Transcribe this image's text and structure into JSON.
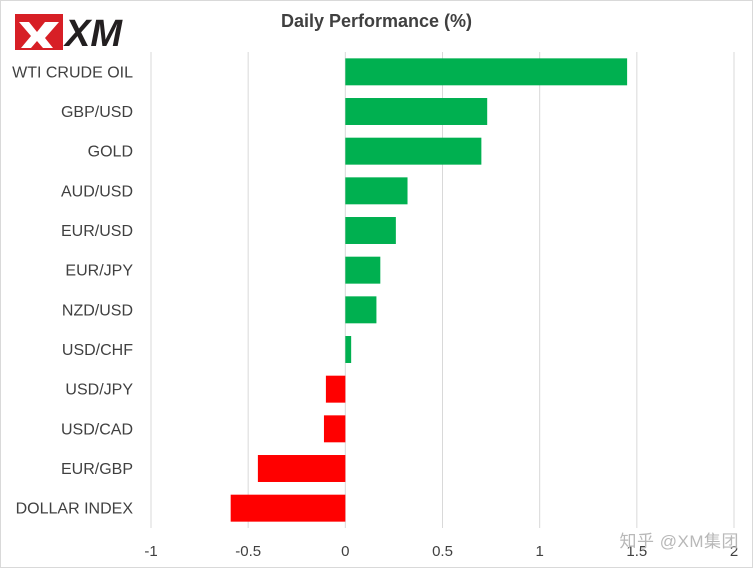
{
  "brand": {
    "logo_text": "XM",
    "logo_color": "#d71f26",
    "logo_dark": "#231f20"
  },
  "watermark": {
    "text": "知乎 @XM集团"
  },
  "chart_data": {
    "type": "bar",
    "orientation": "horizontal",
    "title": "Daily Performance (%)",
    "categories": [
      "WTI CRUDE OIL",
      "GBP/USD",
      "GOLD",
      "AUD/USD",
      "EUR/USD",
      "EUR/JPY",
      "NZD/USD",
      "USD/CHF",
      "USD/JPY",
      "USD/CAD",
      "EUR/GBP",
      "DOLLAR INDEX"
    ],
    "values": [
      1.45,
      0.73,
      0.7,
      0.32,
      0.26,
      0.18,
      0.16,
      0.03,
      -0.1,
      -0.11,
      -0.45,
      -0.59
    ],
    "xlim": [
      -1,
      2
    ],
    "xticks": [
      -1,
      -0.5,
      0,
      0.5,
      1,
      1.5,
      2
    ],
    "xtick_labels": [
      "-1",
      "-0.5",
      "0",
      "0.5",
      "1",
      "1.5",
      "2"
    ],
    "grid": "vertical",
    "positive_color": "#00b050",
    "negative_color": "#ff0000"
  }
}
